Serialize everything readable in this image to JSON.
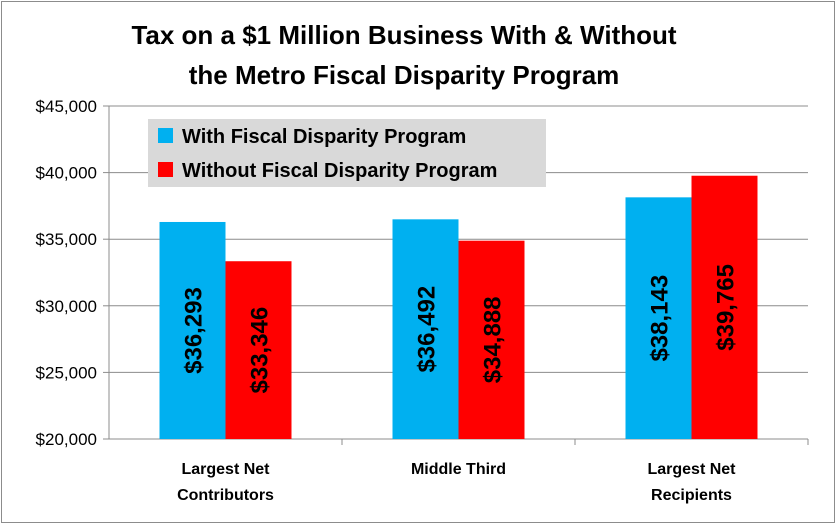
{
  "chart_data": {
    "type": "bar",
    "title_lines": [
      "Tax on a $1 Million Business With & Without",
      "the Metro Fiscal Disparity Program"
    ],
    "categories": [
      [
        "Largest Net",
        "Contributors"
      ],
      [
        "Middle Third"
      ],
      [
        "Largest Net",
        "Recipients"
      ]
    ],
    "series": [
      {
        "name": "With Fiscal Disparity Program",
        "color": "#00B0F0",
        "values": [
          36293,
          36492,
          38143
        ],
        "labels": [
          "$36,293",
          "$36,492",
          "$38,143"
        ]
      },
      {
        "name": "Without Fiscal Disparity Program",
        "color": "#FF0000",
        "values": [
          33346,
          34888,
          39765
        ],
        "labels": [
          "$33,346",
          "$34,888",
          "$39,765"
        ]
      }
    ],
    "ylim": [
      20000,
      45000
    ],
    "yticks": [
      20000,
      25000,
      30000,
      35000,
      40000,
      45000
    ],
    "ytick_labels": [
      "$20,000",
      "$25,000",
      "$30,000",
      "$35,000",
      "$40,000",
      "$45,000"
    ],
    "grid": true,
    "legend_position": "top-left",
    "legend_bg": "#D9D9D9",
    "xlabel": "",
    "ylabel": ""
  }
}
